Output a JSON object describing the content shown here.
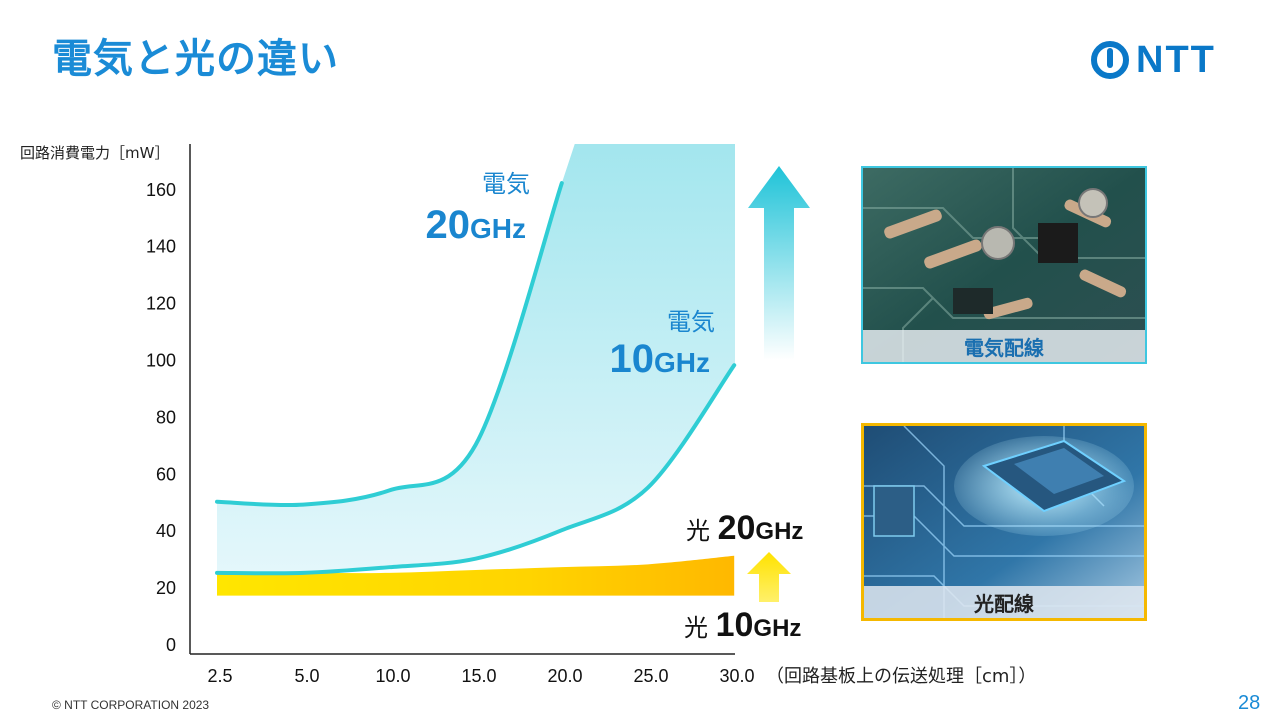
{
  "slide": {
    "title": "電気と光の違い",
    "logo_text": "NTT",
    "copyright": "© NTT CORPORATION 2023",
    "page_number": "28"
  },
  "photos": {
    "electric_caption": "電気配線",
    "optical_caption": "光配線"
  },
  "colors": {
    "title": "#1a8bd6",
    "electric_line": "#2ecfd6",
    "electric_fill": "#a8e8ef",
    "optical_fill": "#ffcc00",
    "arrow_cyan": "#29c6d9",
    "arrow_yellow": "#ffe000"
  },
  "chart_data": {
    "type": "line",
    "ylabel": "回路消費電力［mW］",
    "xlabel": "（回路基板上の伝送処理［cm］）",
    "categories": [
      "2.5",
      "5.0",
      "10.0",
      "15.0",
      "20.0",
      "25.0",
      "30.0"
    ],
    "y_ticks": [
      "0",
      "20",
      "40",
      "60",
      "80",
      "100",
      "120",
      "140",
      "160"
    ],
    "ylim": [
      0,
      175
    ],
    "grid": false,
    "series": [
      {
        "label_prefix": "電気",
        "label_value": "20GHz",
        "values": [
          50,
          49,
          54,
          70,
          162,
          null,
          null
        ],
        "style": "electric"
      },
      {
        "label_prefix": "電気",
        "label_value": "10GHz",
        "values": [
          25,
          25,
          27,
          30,
          40,
          55,
          98
        ],
        "style": "electric"
      },
      {
        "label_prefix": "光",
        "label_value": "20GHz",
        "values": [
          25,
          25,
          25,
          26,
          27,
          28,
          31
        ],
        "style": "optical"
      },
      {
        "label_prefix": "光",
        "label_value": "10GHz",
        "values": [
          17,
          17,
          17,
          17,
          17,
          17,
          17
        ],
        "style": "optical"
      }
    ]
  }
}
